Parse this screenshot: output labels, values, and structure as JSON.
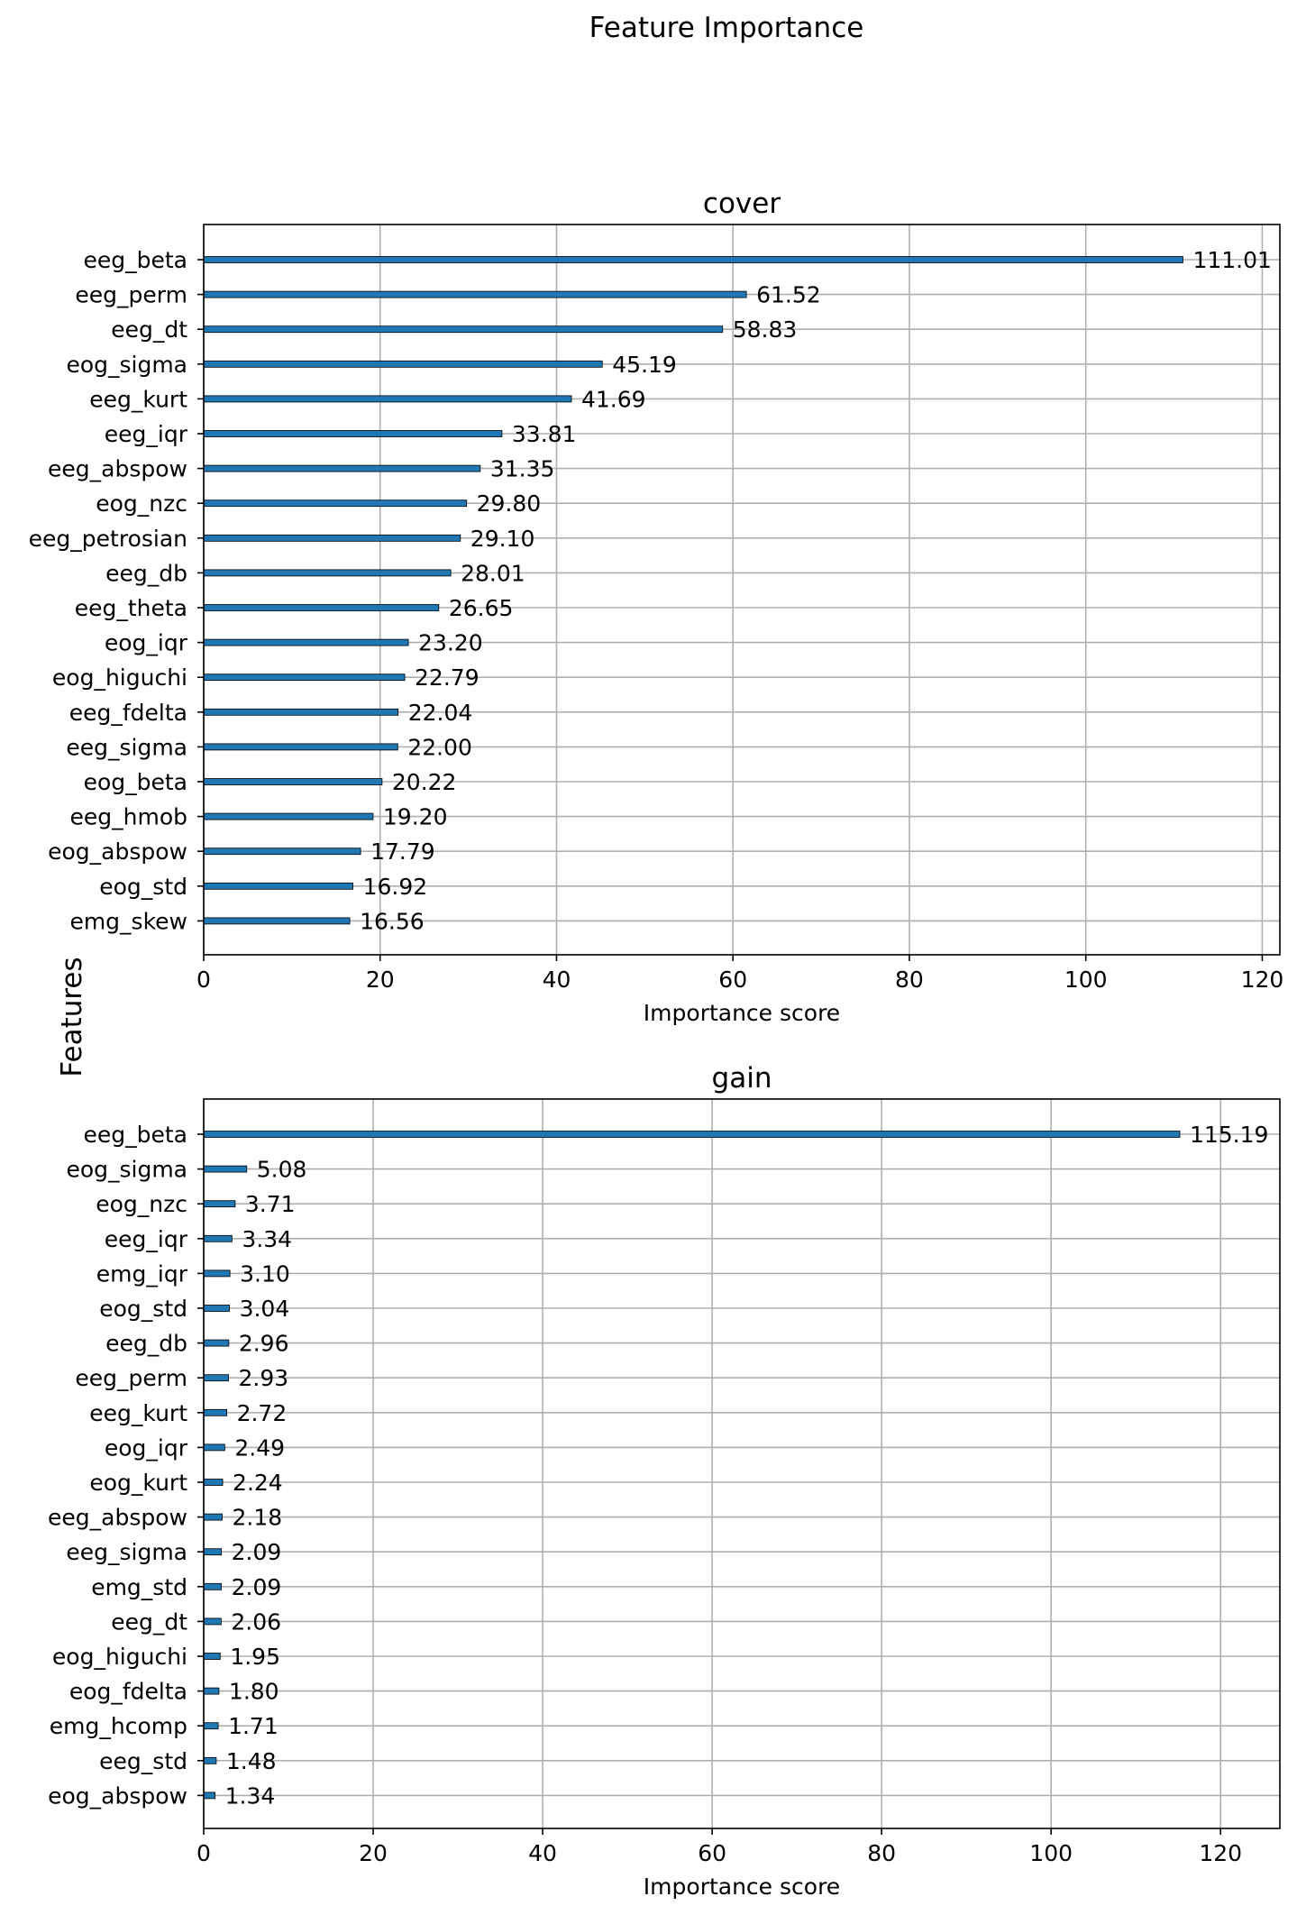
{
  "figure_title": "Feature Importance",
  "figure_ylabel": "Features",
  "colors": {
    "bar": "#1f77b4",
    "grid": "#b0b0b0",
    "axis": "#000000"
  },
  "chart_data": [
    {
      "type": "bar",
      "orientation": "horizontal",
      "title": "cover",
      "xlabel": "Importance score",
      "xlim": [
        0,
        122
      ],
      "xticks": [
        0,
        20,
        40,
        60,
        80,
        100,
        120
      ],
      "grid": true,
      "categories": [
        "eeg_beta",
        "eeg_perm",
        "eeg_dt",
        "eog_sigma",
        "eeg_kurt",
        "eeg_iqr",
        "eeg_abspow",
        "eog_nzc",
        "eeg_petrosian",
        "eeg_db",
        "eeg_theta",
        "eog_iqr",
        "eog_higuchi",
        "eeg_fdelta",
        "eeg_sigma",
        "eog_beta",
        "eeg_hmob",
        "eog_abspow",
        "eog_std",
        "emg_skew"
      ],
      "values": [
        111.01,
        61.52,
        58.83,
        45.19,
        41.69,
        33.81,
        31.35,
        29.8,
        29.1,
        28.01,
        26.65,
        23.2,
        22.79,
        22.04,
        22.0,
        20.22,
        19.2,
        17.79,
        16.92,
        16.56
      ],
      "value_labels": [
        "111.01",
        "61.52",
        "58.83",
        "45.19",
        "41.69",
        "33.81",
        "31.35",
        "29.80",
        "29.10",
        "28.01",
        "26.65",
        "23.20",
        "22.79",
        "22.04",
        "22.00",
        "20.22",
        "19.20",
        "17.79",
        "16.92",
        "16.56"
      ]
    },
    {
      "type": "bar",
      "orientation": "horizontal",
      "title": "gain",
      "xlabel": "Importance score",
      "xlim": [
        0,
        127
      ],
      "xticks": [
        0,
        20,
        40,
        60,
        80,
        100,
        120
      ],
      "grid": true,
      "categories": [
        "eeg_beta",
        "eog_sigma",
        "eog_nzc",
        "eeg_iqr",
        "emg_iqr",
        "eog_std",
        "eeg_db",
        "eeg_perm",
        "eeg_kurt",
        "eog_iqr",
        "eog_kurt",
        "eeg_abspow",
        "eeg_sigma",
        "emg_std",
        "eeg_dt",
        "eog_higuchi",
        "eog_fdelta",
        "emg_hcomp",
        "eeg_std",
        "eog_abspow"
      ],
      "values": [
        115.19,
        5.08,
        3.71,
        3.34,
        3.1,
        3.04,
        2.96,
        2.93,
        2.72,
        2.49,
        2.24,
        2.18,
        2.09,
        2.09,
        2.06,
        1.95,
        1.8,
        1.71,
        1.48,
        1.34
      ],
      "value_labels": [
        "115.19",
        "5.08",
        "3.71",
        "3.34",
        "3.10",
        "3.04",
        "2.96",
        "2.93",
        "2.72",
        "2.49",
        "2.24",
        "2.18",
        "2.09",
        "2.09",
        "2.06",
        "1.95",
        "1.80",
        "1.71",
        "1.48",
        "1.34"
      ]
    }
  ]
}
